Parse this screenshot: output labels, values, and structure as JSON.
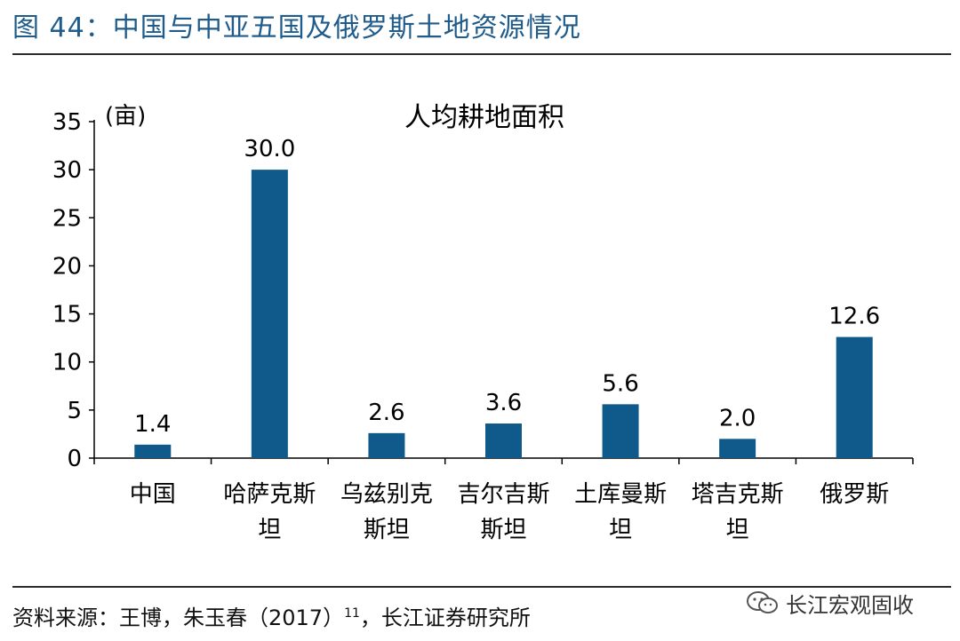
{
  "figure_title": "图 44：中国与中亚五国及俄罗斯土地资源情况",
  "source": {
    "text": "资料来源：王博，朱玉春（2017）",
    "footnote": "11",
    "tail": "，长江证券研究所"
  },
  "watermark": {
    "text": "长江宏观固收",
    "icon": "wechat-icon"
  },
  "chart_data": {
    "type": "bar",
    "title": "人均耕地面积",
    "unit_label": "(亩)",
    "categories": [
      [
        "中国"
      ],
      [
        "哈萨克斯",
        "坦"
      ],
      [
        "乌兹别克",
        "斯坦"
      ],
      [
        "吉尔吉斯",
        "斯坦"
      ],
      [
        "土库曼斯",
        "坦"
      ],
      [
        "塔吉克斯",
        "坦"
      ],
      [
        "俄罗斯"
      ]
    ],
    "values": [
      1.4,
      30.0,
      2.6,
      3.6,
      5.6,
      2.0,
      12.6
    ],
    "value_labels": [
      "1.4",
      "30.0",
      "2.6",
      "3.6",
      "5.6",
      "2.0",
      "12.6"
    ],
    "ylim": [
      0,
      35
    ],
    "yticks": [
      0,
      5,
      10,
      15,
      20,
      25,
      30,
      35
    ],
    "grid": false,
    "bar_color": "#0f5a8a"
  }
}
